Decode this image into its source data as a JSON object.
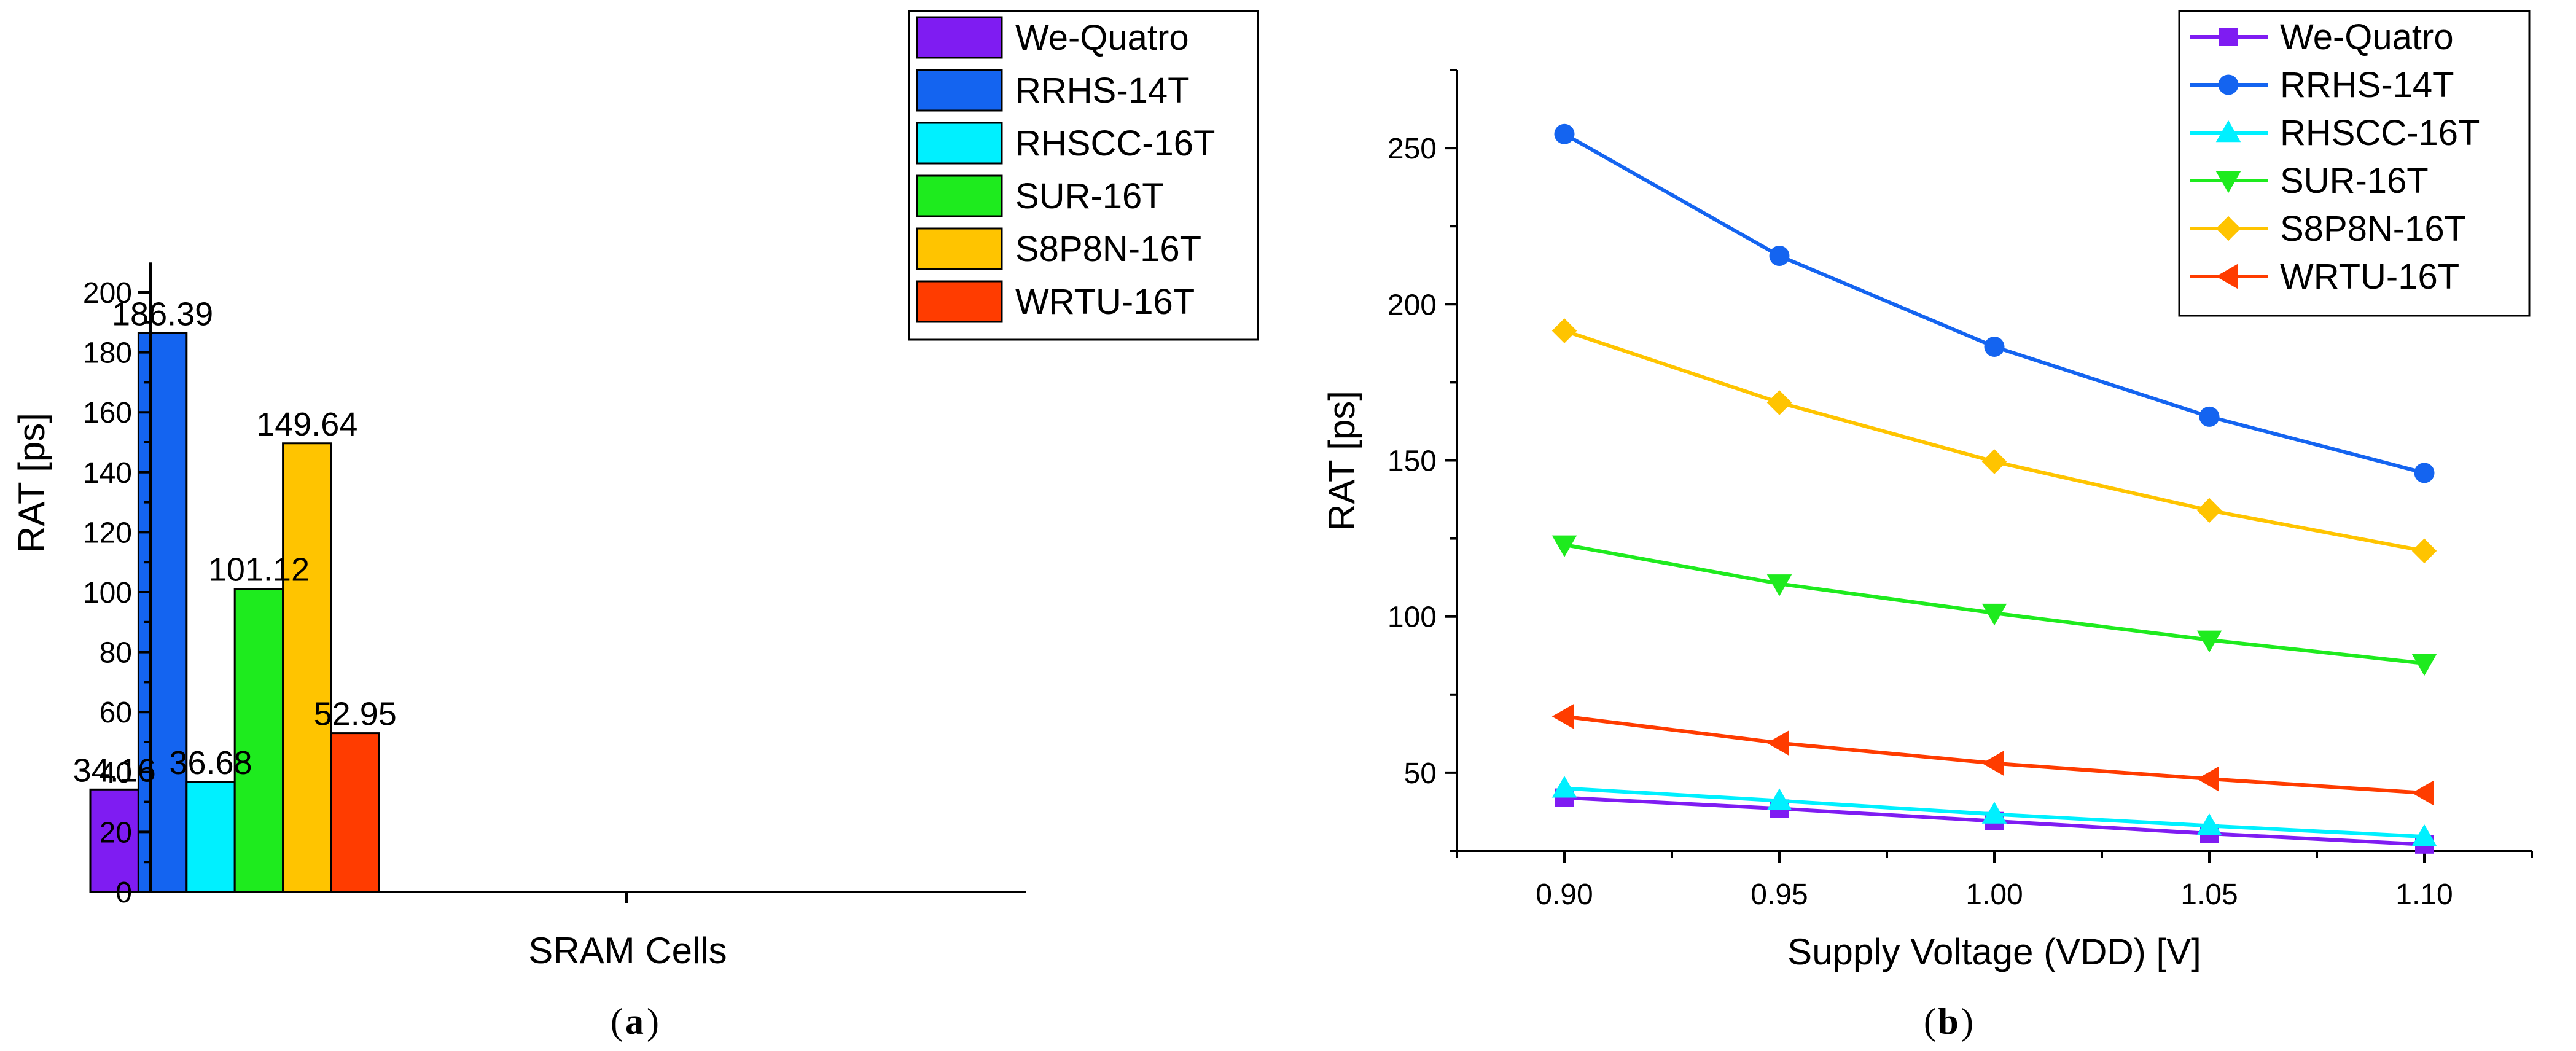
{
  "figure": {
    "panel_a_caption": {
      "open": "(",
      "letter": "a",
      "close": ")"
    },
    "panel_b_caption": {
      "open": "(",
      "letter": "b",
      "close": ")"
    }
  },
  "colors": {
    "We-Quatro": "#7F1CF2",
    "RRHS-14T": "#1464F0",
    "RHSCC-16T": "#00F0FF",
    "SUR-16T": "#1EEB1E",
    "S8P8N-16T": "#FFC400",
    "WRTU-16T": "#FF3C00"
  },
  "chart_data": [
    {
      "id": "a",
      "type": "bar",
      "title": "",
      "xlabel": "SRAM Cells",
      "ylabel": "RAT [ps]",
      "ylim": [
        0,
        210
      ],
      "yticks": [
        0,
        20,
        40,
        60,
        80,
        100,
        120,
        140,
        160,
        180,
        200
      ],
      "categories": [
        "We-Quatro",
        "RRHS-14T",
        "RHSCC-16T",
        "SUR-16T",
        "S8P8N-16T",
        "WRTU-16T"
      ],
      "values": [
        34.16,
        186.39,
        36.68,
        101.12,
        149.64,
        52.95
      ],
      "labels": [
        "34.16",
        "186.39",
        "36.68",
        "101.12",
        "149.64",
        "52.95"
      ],
      "legend": [
        "We-Quatro",
        "RRHS-14T",
        "RHSCC-16T",
        "SUR-16T",
        "S8P8N-16T",
        "WRTU-16T"
      ],
      "legend_position": "top-right"
    },
    {
      "id": "b",
      "type": "line",
      "title": "",
      "xlabel": "Supply Voltage (VDD) [V]",
      "ylabel": "RAT [ps]",
      "x": [
        0.9,
        0.95,
        1.0,
        1.05,
        1.1
      ],
      "xtick_labels": [
        "0.90",
        "0.95",
        "1.00",
        "1.05",
        "1.10"
      ],
      "xlim": [
        0.875,
        1.125
      ],
      "ylim": [
        25,
        275
      ],
      "yticks": [
        50,
        100,
        150,
        200,
        250
      ],
      "series": [
        {
          "name": "We-Quatro",
          "marker": "square",
          "values": [
            42,
            38.5,
            34.5,
            30.5,
            27
          ]
        },
        {
          "name": "RRHS-14T",
          "marker": "circle",
          "values": [
            254.5,
            215.5,
            186.4,
            164,
            146
          ]
        },
        {
          "name": "RHSCC-16T",
          "marker": "triangle-up",
          "values": [
            45,
            41,
            36.7,
            33,
            29.5
          ]
        },
        {
          "name": "SUR-16T",
          "marker": "triangle-down",
          "values": [
            123,
            110.5,
            101.1,
            92.5,
            85
          ]
        },
        {
          "name": "S8P8N-16T",
          "marker": "diamond",
          "values": [
            191.5,
            168.5,
            149.6,
            134,
            121
          ]
        },
        {
          "name": "WRTU-16T",
          "marker": "triangle-left",
          "values": [
            68,
            59.5,
            53,
            48,
            43.5
          ]
        }
      ],
      "legend_position": "top-right"
    }
  ]
}
